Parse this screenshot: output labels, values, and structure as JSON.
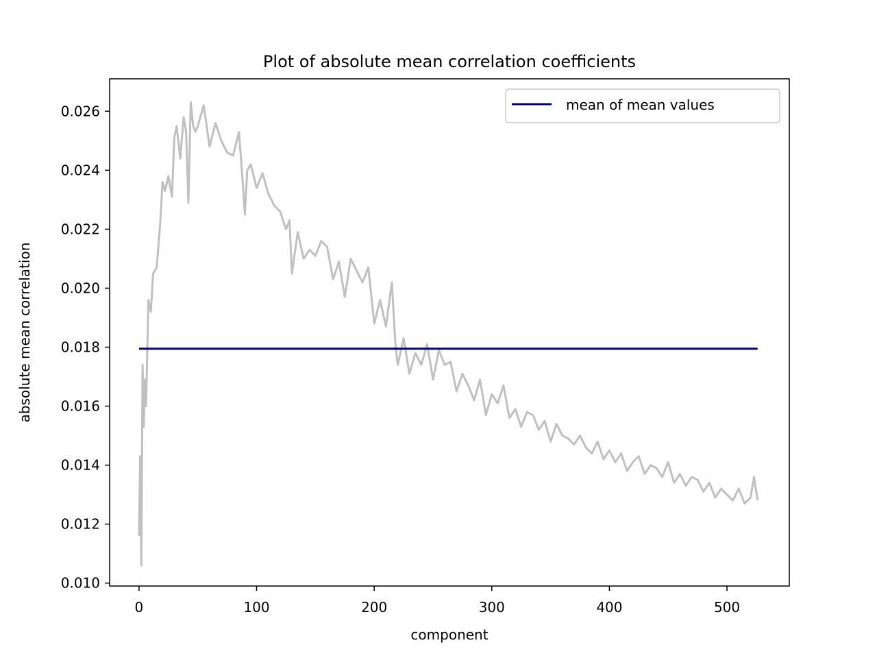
{
  "chart_data": {
    "type": "line",
    "title": "Plot of absolute mean correlation coefficients",
    "xlabel": "component",
    "ylabel": "absolute mean correlation",
    "xlim": [
      -25,
      553
    ],
    "ylim": [
      0.0099,
      0.0271
    ],
    "xticks": [
      0,
      100,
      200,
      300,
      400,
      500
    ],
    "xtick_labels": [
      "0",
      "100",
      "200",
      "300",
      "400",
      "500"
    ],
    "yticks": [
      0.01,
      0.012,
      0.014,
      0.016,
      0.018,
      0.02,
      0.022,
      0.024,
      0.026
    ],
    "ytick_labels": [
      "0.010",
      "0.012",
      "0.014",
      "0.016",
      "0.018",
      "0.020",
      "0.022",
      "0.024",
      "0.026"
    ],
    "grid": false,
    "legend": {
      "position": "top-right",
      "entries": [
        "mean of mean values"
      ]
    },
    "series": [
      {
        "color": "#c0c0c0",
        "x": [
          0,
          1,
          2,
          3,
          4,
          5,
          6,
          8,
          10,
          12,
          15,
          18,
          20,
          22,
          25,
          28,
          30,
          32,
          35,
          38,
          40,
          42,
          44,
          46,
          48,
          50,
          55,
          60,
          65,
          70,
          75,
          80,
          85,
          88,
          90,
          92,
          95,
          100,
          105,
          110,
          115,
          120,
          125,
          128,
          130,
          135,
          140,
          145,
          150,
          155,
          160,
          165,
          170,
          175,
          180,
          185,
          190,
          195,
          200,
          205,
          210,
          215,
          218,
          220,
          225,
          230,
          235,
          240,
          245,
          250,
          255,
          260,
          265,
          270,
          275,
          280,
          285,
          290,
          295,
          300,
          305,
          310,
          315,
          320,
          325,
          330,
          335,
          340,
          345,
          350,
          355,
          360,
          365,
          370,
          375,
          380,
          385,
          390,
          395,
          400,
          405,
          410,
          415,
          420,
          425,
          430,
          435,
          440,
          445,
          450,
          455,
          460,
          465,
          470,
          475,
          480,
          485,
          490,
          495,
          500,
          505,
          510,
          515,
          520,
          523,
          526
        ],
        "y": [
          0.0116,
          0.0143,
          0.0106,
          0.0174,
          0.0153,
          0.0169,
          0.016,
          0.0196,
          0.0192,
          0.0205,
          0.0207,
          0.0222,
          0.0236,
          0.0233,
          0.0238,
          0.0231,
          0.0251,
          0.0255,
          0.0244,
          0.0258,
          0.0253,
          0.0229,
          0.0263,
          0.0255,
          0.0253,
          0.0255,
          0.0262,
          0.0248,
          0.0256,
          0.025,
          0.0246,
          0.0245,
          0.0253,
          0.0237,
          0.0225,
          0.024,
          0.0242,
          0.0234,
          0.0239,
          0.0232,
          0.0228,
          0.0226,
          0.022,
          0.0223,
          0.0205,
          0.0219,
          0.021,
          0.0213,
          0.0211,
          0.0216,
          0.0214,
          0.0203,
          0.0209,
          0.0197,
          0.021,
          0.0206,
          0.0202,
          0.0207,
          0.0188,
          0.0196,
          0.0187,
          0.0202,
          0.0181,
          0.0174,
          0.0183,
          0.0171,
          0.0178,
          0.0174,
          0.0181,
          0.0169,
          0.0179,
          0.0174,
          0.0175,
          0.0165,
          0.0171,
          0.0167,
          0.0162,
          0.0169,
          0.0157,
          0.0164,
          0.0161,
          0.0167,
          0.0156,
          0.0159,
          0.0153,
          0.0158,
          0.0157,
          0.0152,
          0.0155,
          0.0148,
          0.0154,
          0.015,
          0.0149,
          0.0147,
          0.015,
          0.0146,
          0.0144,
          0.0148,
          0.0142,
          0.0145,
          0.0141,
          0.0144,
          0.0138,
          0.0141,
          0.0143,
          0.0137,
          0.014,
          0.0139,
          0.0136,
          0.0141,
          0.0134,
          0.0137,
          0.0133,
          0.0136,
          0.0135,
          0.0131,
          0.0134,
          0.0129,
          0.0132,
          0.013,
          0.0128,
          0.0132,
          0.0127,
          0.0129,
          0.0136,
          0.0128
        ]
      },
      {
        "name": "mean of mean values",
        "color": "#000080",
        "x": [
          0,
          526
        ],
        "y": [
          0.01795,
          0.01795
        ]
      }
    ]
  }
}
